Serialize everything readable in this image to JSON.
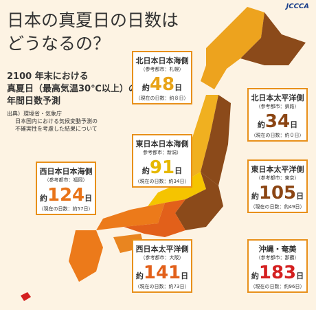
{
  "logo": "JCCCA",
  "title": [
    "日本の真夏日の日数は",
    "どうなるの？"
  ],
  "subtitle": [
    "2100 年末における",
    "真夏日（最高気温30℃以上）の",
    "年間日数予測"
  ],
  "source": [
    "出典）環境省・気象庁",
    "日本国内における気候変動予測の",
    "不確実性を考慮した結果について"
  ],
  "regions": [
    {
      "name": "北日本日本海側",
      "city": "（参考都市：札幌）",
      "prefix": "約",
      "value": 48,
      "unit": "日",
      "current": "（現在の日数：約８日）",
      "color": "#e8a317"
    },
    {
      "name": "北日本太平洋側",
      "city": "（参考都市：釧路）",
      "prefix": "約",
      "value": 34,
      "unit": "日",
      "current": "（現在の日数：約０日）",
      "color": "#8b4513"
    },
    {
      "name": "東日本日本海側",
      "city": "参考都市：新潟）",
      "prefix": "約",
      "value": 91,
      "unit": "日",
      "current": "（現在の日数：約34日）",
      "color": "#e6b800"
    },
    {
      "name": "西日本日本海側",
      "city": "（参考都市：福岡）",
      "prefix": "約",
      "value": 124,
      "unit": "日",
      "current": "（現在の日数：約57日）",
      "color": "#e8741a"
    },
    {
      "name": "東日本太平洋側",
      "city": "（参考都市：東京）",
      "prefix": "約",
      "value": 105,
      "unit": "日",
      "current": "（現在の日数：約49日）",
      "color": "#8b4513"
    },
    {
      "name": "西日本太平洋側",
      "city": "（参考都市：大阪）",
      "prefix": "約",
      "value": 141,
      "unit": "日",
      "current": "（現在の日数：約73日）",
      "color": "#e2601a"
    },
    {
      "name": "沖縄・奄美",
      "city": "（参考都市：那覇）",
      "prefix": "約",
      "value": 183,
      "unit": "日",
      "current": "（現在の日数：約96日）",
      "color": "#d42020"
    }
  ]
}
